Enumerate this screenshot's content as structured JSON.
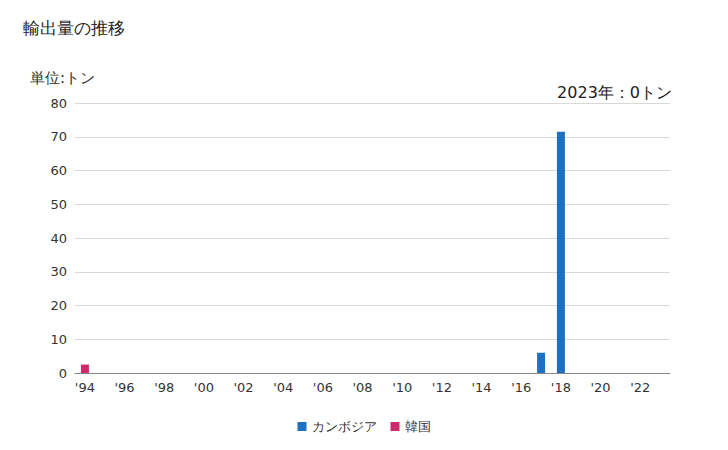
{
  "chart_data": {
    "type": "bar",
    "title": "輸出量の推移",
    "y_label": "単位:トン",
    "annotations": [
      "2023年：0トン"
    ],
    "categories": [
      "'94",
      null,
      "'96",
      null,
      "'98",
      null,
      "'00",
      null,
      "'02",
      null,
      "'04",
      null,
      "'06",
      null,
      "'08",
      null,
      "'10",
      null,
      "'12",
      null,
      "'14",
      null,
      "'16",
      null,
      "'18",
      null,
      "'20",
      null,
      "'22",
      null
    ],
    "series": [
      {
        "name": "カンボジア",
        "color": "#1f70c1",
        "values": [
          0,
          0,
          0,
          0,
          0,
          0,
          0,
          0,
          0,
          0,
          0,
          0,
          0,
          0,
          0,
          0,
          0,
          0,
          0,
          0,
          0,
          0,
          0,
          6,
          71.5,
          0,
          0,
          0,
          0,
          0
        ]
      },
      {
        "name": "韓国",
        "color": "#d0286c",
        "values": [
          2.5,
          0,
          0,
          0,
          0,
          0,
          0,
          0,
          0,
          0,
          0,
          0,
          0,
          0,
          0,
          0,
          0,
          0,
          0,
          0,
          0,
          0,
          0,
          0,
          0,
          0,
          0,
          0,
          0,
          0
        ]
      }
    ],
    "ylim": [
      0,
      80
    ],
    "yticks": [
      0,
      10,
      20,
      30,
      40,
      50,
      60,
      70,
      80
    ],
    "grid": true,
    "legend": "bottom",
    "stacked": true
  }
}
